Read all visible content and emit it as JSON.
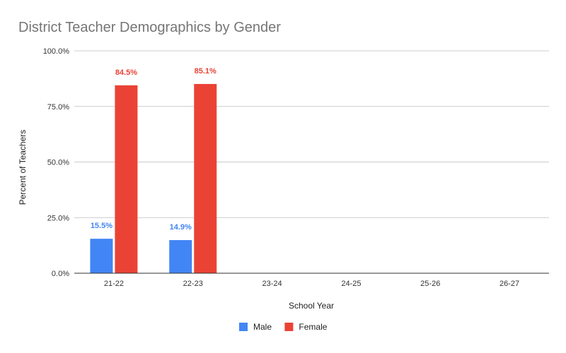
{
  "chart_data": {
    "type": "bar",
    "title": "District Teacher Demographics by Gender",
    "xlabel": "School Year",
    "ylabel": "Percent of Teachers",
    "categories": [
      "21-22",
      "22-23",
      "23-24",
      "24-25",
      "25-26",
      "26-27"
    ],
    "ylim": [
      0,
      100
    ],
    "yticks": [
      "0.0%",
      "25.0%",
      "50.0%",
      "75.0%",
      "100.0%"
    ],
    "ytick_values": [
      0,
      25,
      50,
      75,
      100
    ],
    "grid": true,
    "legend_position": "bottom",
    "series": [
      {
        "name": "Male",
        "color": "#4285f4",
        "values": [
          15.5,
          14.9,
          null,
          null,
          null,
          null
        ],
        "labels": [
          "15.5%",
          "14.9%",
          "",
          "",
          "",
          ""
        ]
      },
      {
        "name": "Female",
        "color": "#ea4335",
        "values": [
          84.5,
          85.1,
          null,
          null,
          null,
          null
        ],
        "labels": [
          "84.5%",
          "85.1%",
          "",
          "",
          "",
          ""
        ]
      }
    ]
  }
}
